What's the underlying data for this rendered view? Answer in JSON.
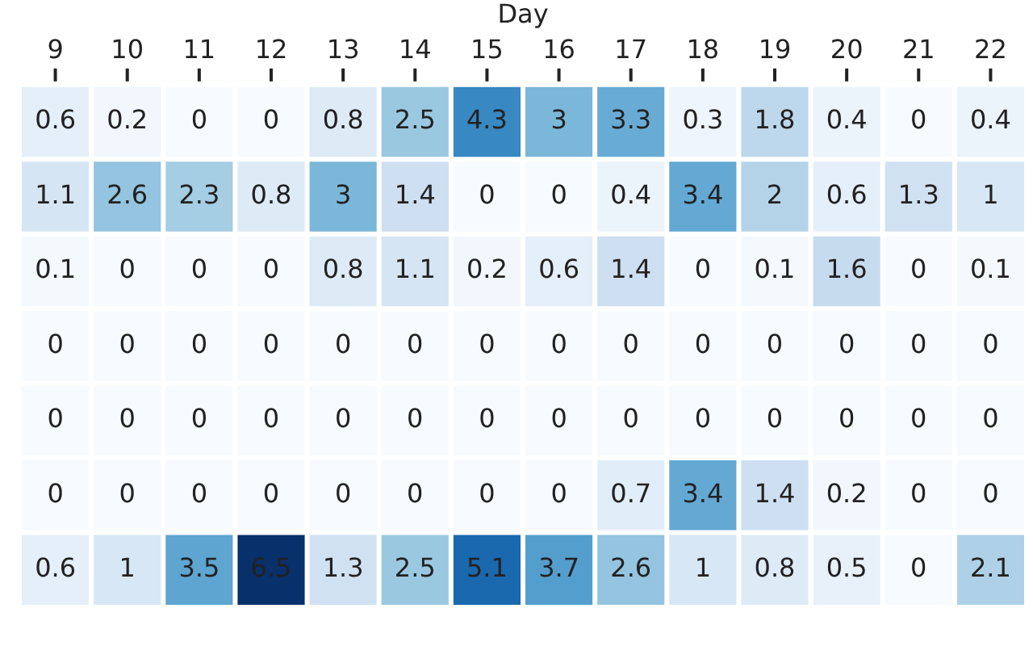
{
  "chart_data": {
    "type": "heatmap",
    "xlabel": "Day",
    "categories": [
      "9",
      "10",
      "11",
      "12",
      "13",
      "14",
      "15",
      "16",
      "17",
      "18",
      "19",
      "20",
      "21",
      "22"
    ],
    "y_categories": [
      null,
      null,
      null,
      null,
      null,
      null,
      null
    ],
    "cells": [
      [
        0.6,
        0.2,
        0,
        0,
        0.8,
        2.5,
        4.3,
        3,
        3.3,
        0.3,
        1.8,
        0.4,
        0,
        0.4
      ],
      [
        1.1,
        2.6,
        2.3,
        0.8,
        3,
        1.4,
        0,
        0,
        0.4,
        3.4,
        2,
        0.6,
        1.3,
        1
      ],
      [
        0.1,
        0,
        0,
        0,
        0.8,
        1.1,
        0.2,
        0.6,
        1.4,
        0,
        0.1,
        1.6,
        0,
        0.1
      ],
      [
        0,
        0,
        0,
        0,
        0,
        0,
        0,
        0,
        0,
        0,
        0,
        0,
        0,
        0
      ],
      [
        0,
        0,
        0,
        0,
        0,
        0,
        0,
        0,
        0,
        0,
        0,
        0,
        0,
        0
      ],
      [
        0,
        0,
        0,
        0,
        0,
        0,
        0,
        0,
        0.7,
        3.4,
        1.4,
        0.2,
        0,
        0
      ],
      [
        0.6,
        1,
        3.5,
        6.5,
        1.3,
        2.5,
        5.1,
        3.7,
        2.6,
        1,
        0.8,
        0.5,
        0,
        2.1
      ]
    ],
    "data_labels": true,
    "tick_labels": "x",
    "grid": false,
    "legend": false
  }
}
